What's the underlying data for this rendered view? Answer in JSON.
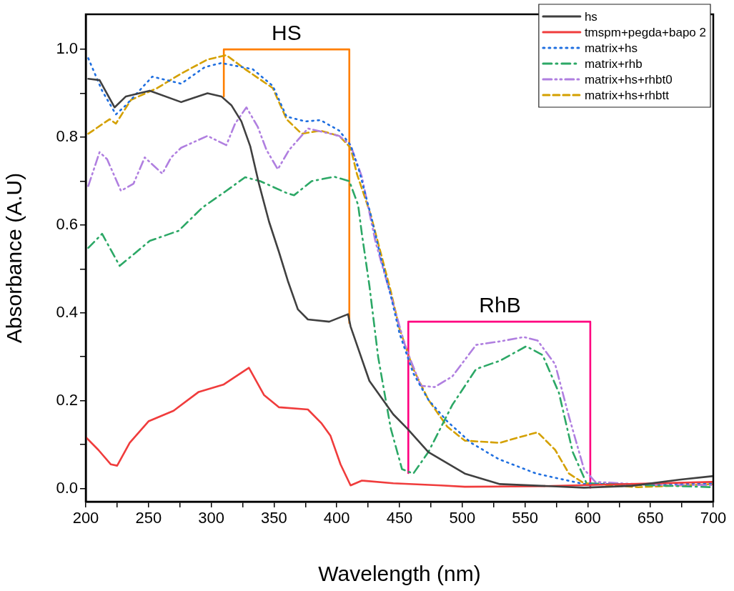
{
  "chart_data": {
    "type": "line",
    "xlabel": "Wavelength (nm)",
    "ylabel": "Absorbance (A.U)",
    "xlim": [
      200,
      700
    ],
    "xticks": [
      200,
      {
        "value": 225,
        "label": null
      },
      250,
      {
        "value": 275,
        "label": null
      },
      300,
      {
        "value": 325,
        "label": null
      },
      350,
      {
        "value": 375,
        "label": null
      },
      400,
      {
        "value": 425,
        "label": null
      },
      450,
      {
        "value": 475,
        "label": null
      },
      500,
      {
        "value": 525,
        "label": null
      },
      550,
      {
        "value": 575,
        "label": null
      },
      600,
      {
        "value": 625,
        "label": null
      },
      650,
      {
        "value": 675,
        "label": null
      },
      700
    ],
    "ylim": [
      -0.03,
      1.08
    ],
    "yticks": [
      {
        "value": 0,
        "label": "0.0"
      },
      {
        "value": 0.1,
        "label": null
      },
      0.2,
      {
        "value": 0.3,
        "label": null
      },
      0.4,
      {
        "value": 0.5,
        "label": null
      },
      0.6,
      {
        "value": 0.7,
        "label": null
      },
      0.8,
      {
        "value": 0.9,
        "label": null
      },
      {
        "value": 1,
        "label": "1.0"
      }
    ],
    "grid": false,
    "legend": "top right",
    "marker": "none",
    "series": [
      {
        "name": "hs",
        "color": "#404040",
        "line_style": "solid",
        "x": [
          202,
          211,
          223,
          232,
          251,
          276,
          297,
          308,
          316,
          324,
          331,
          338,
          346,
          354,
          361,
          369,
          377,
          394,
          409,
          411,
          426,
          445,
          456,
          473,
          502,
          530,
          597,
          635,
          673,
          699
        ],
        "values": [
          0.933,
          0.93,
          0.868,
          0.893,
          0.906,
          0.88,
          0.9,
          0.893,
          0.873,
          0.836,
          0.78,
          0.694,
          0.608,
          0.538,
          0.473,
          0.408,
          0.385,
          0.38,
          0.397,
          0.369,
          0.245,
          0.169,
          0.137,
          0.083,
          0.034,
          0.01,
          0.002,
          0.006,
          0.02,
          0.028
        ]
      },
      {
        "name": "tmspm+pegda+bapo 2",
        "color": "#f03c3c",
        "line_style": "solid",
        "x": [
          200,
          210,
          220,
          225,
          235,
          250,
          270,
          290,
          310,
          330,
          342,
          354,
          377,
          388,
          395,
          403,
          411,
          420,
          445,
          483,
          502,
          559,
          616,
          699
        ],
        "values": [
          0.117,
          0.088,
          0.055,
          0.052,
          0.104,
          0.153,
          0.177,
          0.22,
          0.237,
          0.275,
          0.213,
          0.185,
          0.18,
          0.148,
          0.12,
          0.055,
          0.007,
          0.018,
          0.012,
          0.007,
          0.004,
          0.005,
          0.009,
          0.015
        ]
      },
      {
        "name": "matrix+hs",
        "color": "#1f6fe0",
        "line_style": "dotted",
        "x": [
          202,
          213,
          224,
          232,
          253,
          276,
          295,
          308,
          333,
          349,
          360,
          375,
          387,
          402,
          411,
          418,
          427,
          435,
          443,
          450,
          461,
          473,
          488,
          507,
          529,
          559,
          597,
          650,
          700
        ],
        "values": [
          0.98,
          0.906,
          0.852,
          0.873,
          0.938,
          0.922,
          0.96,
          0.969,
          0.955,
          0.917,
          0.847,
          0.836,
          0.839,
          0.815,
          0.782,
          0.722,
          0.624,
          0.527,
          0.44,
          0.353,
          0.262,
          0.202,
          0.153,
          0.104,
          0.067,
          0.034,
          0.01,
          0.01,
          0.012
        ]
      },
      {
        "name": "matrix+rhb",
        "color": "#2ca866",
        "line_style": "dashdot",
        "x": [
          202,
          213,
          227,
          251,
          274,
          293,
          312,
          327,
          339,
          360,
          366,
          380,
          398,
          410,
          417,
          420,
          426,
          433,
          443,
          452,
          461,
          473,
          492,
          511,
          530,
          551,
          564,
          577,
          588,
          599,
          640,
          700
        ],
        "values": [
          0.548,
          0.58,
          0.507,
          0.564,
          0.587,
          0.64,
          0.678,
          0.709,
          0.7,
          0.673,
          0.668,
          0.7,
          0.71,
          0.7,
          0.646,
          0.58,
          0.462,
          0.299,
          0.137,
          0.044,
          0.034,
          0.083,
          0.19,
          0.272,
          0.291,
          0.324,
          0.304,
          0.218,
          0.083,
          0.012,
          0.008,
          0.003
        ]
      },
      {
        "name": "matrix+hs+rhbt0",
        "color": "#b07fe0",
        "line_style": "dashdotdot",
        "x": [
          202,
          211,
          217,
          228,
          238,
          247,
          261,
          268,
          276,
          297,
          312,
          319,
          328,
          337,
          344,
          353,
          362,
          377,
          402,
          411,
          420,
          431,
          443,
          455,
          467,
          478,
          492,
          511,
          530,
          549,
          560,
          574,
          585,
          597,
          606,
          650,
          700
        ],
        "values": [
          0.689,
          0.766,
          0.75,
          0.678,
          0.694,
          0.754,
          0.717,
          0.754,
          0.776,
          0.803,
          0.782,
          0.831,
          0.868,
          0.824,
          0.771,
          0.727,
          0.771,
          0.82,
          0.803,
          0.782,
          0.71,
          0.56,
          0.44,
          0.32,
          0.234,
          0.231,
          0.255,
          0.327,
          0.335,
          0.345,
          0.337,
          0.283,
          0.164,
          0.044,
          0.015,
          0.008,
          0.008
        ]
      },
      {
        "name": "matrix+hs+rhbtt",
        "color": "#d4a000",
        "line_style": "dashed",
        "x": [
          202,
          219,
          224,
          236,
          257,
          276,
          297,
          312,
          327,
          349,
          360,
          372,
          387,
          402,
          411,
          416,
          427,
          443,
          450,
          461,
          473,
          488,
          502,
          530,
          543,
          560,
          574,
          585,
          597,
          640,
          700
        ],
        "values": [
          0.808,
          0.841,
          0.831,
          0.885,
          0.912,
          0.945,
          0.977,
          0.987,
          0.955,
          0.912,
          0.841,
          0.808,
          0.815,
          0.803,
          0.776,
          0.717,
          0.624,
          0.45,
          0.364,
          0.272,
          0.202,
          0.141,
          0.109,
          0.104,
          0.115,
          0.128,
          0.088,
          0.034,
          0.012,
          0.003,
          0.01
        ]
      },
      {
        "color": "#ff7f00",
        "line_style": "solid",
        "x": [
          310,
          310,
          410,
          410
        ],
        "values": [
          0.893,
          1,
          1,
          0.377
        ]
      },
      {
        "color": "#ff0080",
        "line_style": "solid",
        "x": [
          457,
          457,
          602,
          602
        ],
        "values": [
          0.035,
          0.38,
          0.38,
          0.002
        ]
      }
    ],
    "annotations": [
      {
        "text": "HS",
        "x": 360,
        "y": 1
      },
      {
        "text": "RhB",
        "x": 530,
        "y": 0.38
      }
    ]
  }
}
